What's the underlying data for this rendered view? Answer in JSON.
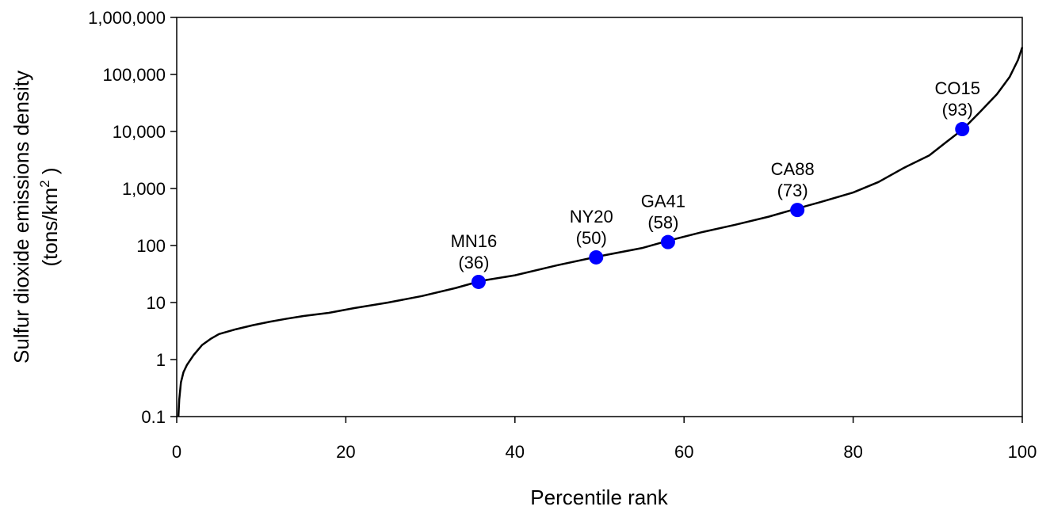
{
  "chart_data": {
    "type": "line",
    "title": "",
    "xlabel": "Percentile rank",
    "ylabel": {
      "line1": "Sulfur dioxide emissions density",
      "line2": "(tons/km",
      "sup": "2",
      "line2_end": " )"
    },
    "xlim": [
      0,
      100
    ],
    "ylim": [
      0.1,
      1000000
    ],
    "yscale": "log",
    "grid": false,
    "x_ticks": [
      {
        "value": 0,
        "label": "0"
      },
      {
        "value": 20,
        "label": "20"
      },
      {
        "value": 40,
        "label": "40"
      },
      {
        "value": 60,
        "label": "60"
      },
      {
        "value": 80,
        "label": "80"
      },
      {
        "value": 100,
        "label": "100"
      }
    ],
    "y_ticks": [
      {
        "value": 0.1,
        "label": "0.1"
      },
      {
        "value": 1,
        "label": "1"
      },
      {
        "value": 10,
        "label": "10"
      },
      {
        "value": 100,
        "label": "100"
      },
      {
        "value": 1000,
        "label": "1,000"
      },
      {
        "value": 10000,
        "label": "10,000"
      },
      {
        "value": 100000,
        "label": "100,000"
      },
      {
        "value": 1000000,
        "label": "1,000,000"
      }
    ],
    "line_color": "#000000",
    "curve": {
      "x": [
        0.2,
        0.3,
        0.5,
        0.8,
        1.2,
        2,
        3,
        4,
        5,
        7,
        9,
        11,
        13,
        15,
        18,
        21,
        25,
        29,
        33,
        36,
        40,
        45,
        50,
        55,
        58,
        62,
        66,
        70,
        73,
        76,
        80,
        83,
        86,
        89,
        91,
        93,
        95,
        97,
        98.5,
        99.5,
        100
      ],
      "y": [
        0.1,
        0.2,
        0.4,
        0.6,
        0.8,
        1.2,
        1.8,
        2.3,
        2.8,
        3.4,
        4.0,
        4.6,
        5.2,
        5.8,
        6.6,
        8.0,
        10.0,
        13.0,
        18.0,
        24.0,
        30.0,
        45.0,
        65.0,
        90.0,
        120.0,
        170.0,
        230.0,
        320.0,
        430.0,
        570.0,
        850.0,
        1300.0,
        2300.0,
        3800.0,
        6500.0,
        11000.0,
        22000.0,
        45000.0,
        90000.0,
        180000.0,
        300000.0
      ]
    },
    "marker_color": "#0000ff",
    "points": [
      {
        "x": 35.7,
        "y": 23,
        "name": "MN16",
        "rank": "(36)"
      },
      {
        "x": 49.6,
        "y": 62,
        "name": "NY20",
        "rank": "(50)"
      },
      {
        "x": 58.1,
        "y": 115,
        "name": "GA41",
        "rank": "(58)"
      },
      {
        "x": 73.4,
        "y": 420,
        "name": "CA88",
        "rank": "(73)"
      },
      {
        "x": 92.9,
        "y": 11000,
        "name": "CO15",
        "rank": "(93)"
      }
    ]
  }
}
